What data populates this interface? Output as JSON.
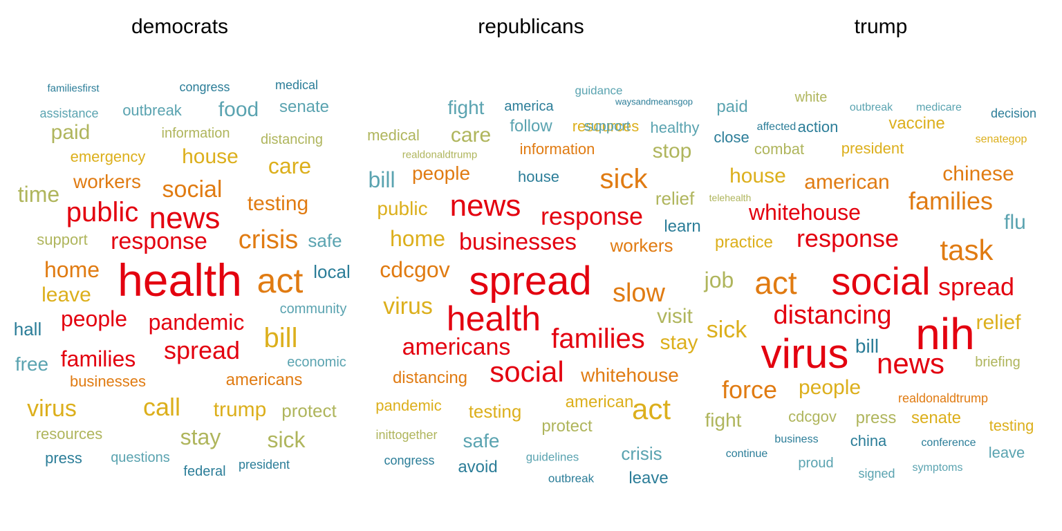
{
  "palette": {
    "red": "#e3000f",
    "orange": "#e07b12",
    "gold": "#dcaf1c",
    "olive": "#afb55c",
    "teal": "#5aa3b0",
    "blue": "#2b7d98"
  },
  "chart_data": [
    {
      "type": "wordcloud",
      "title": "democrats",
      "words": [
        {
          "text": "health",
          "size": 66,
          "color": "red"
        },
        {
          "text": "news",
          "size": 44,
          "color": "red"
        },
        {
          "text": "act",
          "size": 50,
          "color": "orange"
        },
        {
          "text": "public",
          "size": 40,
          "color": "red"
        },
        {
          "text": "crisis",
          "size": 38,
          "color": "orange"
        },
        {
          "text": "bill",
          "size": 40,
          "color": "gold"
        },
        {
          "text": "response",
          "size": 34,
          "color": "red"
        },
        {
          "text": "spread",
          "size": 36,
          "color": "red"
        },
        {
          "text": "social",
          "size": 34,
          "color": "orange"
        },
        {
          "text": "pandemic",
          "size": 32,
          "color": "red"
        },
        {
          "text": "people",
          "size": 32,
          "color": "red"
        },
        {
          "text": "families",
          "size": 32,
          "color": "red"
        },
        {
          "text": "care",
          "size": 32,
          "color": "gold"
        },
        {
          "text": "call",
          "size": 36,
          "color": "gold"
        },
        {
          "text": "home",
          "size": 32,
          "color": "orange"
        },
        {
          "text": "testing",
          "size": 30,
          "color": "orange"
        },
        {
          "text": "house",
          "size": 30,
          "color": "gold"
        },
        {
          "text": "time",
          "size": 32,
          "color": "olive"
        },
        {
          "text": "virus",
          "size": 34,
          "color": "gold"
        },
        {
          "text": "stay",
          "size": 32,
          "color": "olive"
        },
        {
          "text": "sick",
          "size": 32,
          "color": "olive"
        },
        {
          "text": "trump",
          "size": 30,
          "color": "gold"
        },
        {
          "text": "paid",
          "size": 30,
          "color": "olive"
        },
        {
          "text": "food",
          "size": 30,
          "color": "teal"
        },
        {
          "text": "workers",
          "size": 28,
          "color": "orange"
        },
        {
          "text": "leave",
          "size": 30,
          "color": "gold"
        },
        {
          "text": "protect",
          "size": 26,
          "color": "olive"
        },
        {
          "text": "free",
          "size": 28,
          "color": "teal"
        },
        {
          "text": "safe",
          "size": 26,
          "color": "teal"
        },
        {
          "text": "local",
          "size": 26,
          "color": "blue"
        },
        {
          "text": "hall",
          "size": 26,
          "color": "blue"
        },
        {
          "text": "senate",
          "size": 24,
          "color": "teal"
        },
        {
          "text": "outbreak",
          "size": 22,
          "color": "teal"
        },
        {
          "text": "americans",
          "size": 24,
          "color": "orange"
        },
        {
          "text": "businesses",
          "size": 22,
          "color": "orange"
        },
        {
          "text": "emergency",
          "size": 22,
          "color": "gold"
        },
        {
          "text": "information",
          "size": 20,
          "color": "olive"
        },
        {
          "text": "distancing",
          "size": 20,
          "color": "olive"
        },
        {
          "text": "support",
          "size": 22,
          "color": "olive"
        },
        {
          "text": "resources",
          "size": 22,
          "color": "olive"
        },
        {
          "text": "press",
          "size": 22,
          "color": "blue"
        },
        {
          "text": "questions",
          "size": 20,
          "color": "teal"
        },
        {
          "text": "federal",
          "size": 20,
          "color": "blue"
        },
        {
          "text": "president",
          "size": 18,
          "color": "blue"
        },
        {
          "text": "community",
          "size": 20,
          "color": "teal"
        },
        {
          "text": "economic",
          "size": 20,
          "color": "teal"
        },
        {
          "text": "assistance",
          "size": 18,
          "color": "teal"
        },
        {
          "text": "familiesfirst",
          "size": 15,
          "color": "blue"
        },
        {
          "text": "congress",
          "size": 18,
          "color": "blue"
        },
        {
          "text": "medical",
          "size": 18,
          "color": "blue"
        }
      ]
    },
    {
      "type": "wordcloud",
      "title": "republicans",
      "words": [
        {
          "text": "spread",
          "size": 58,
          "color": "red"
        },
        {
          "text": "health",
          "size": 50,
          "color": "red"
        },
        {
          "text": "news",
          "size": 44,
          "color": "red"
        },
        {
          "text": "families",
          "size": 40,
          "color": "red"
        },
        {
          "text": "social",
          "size": 42,
          "color": "red"
        },
        {
          "text": "act",
          "size": 42,
          "color": "gold"
        },
        {
          "text": "sick",
          "size": 40,
          "color": "orange"
        },
        {
          "text": "slow",
          "size": 38,
          "color": "orange"
        },
        {
          "text": "response",
          "size": 36,
          "color": "red"
        },
        {
          "text": "businesses",
          "size": 34,
          "color": "red"
        },
        {
          "text": "americans",
          "size": 34,
          "color": "red"
        },
        {
          "text": "cdcgov",
          "size": 32,
          "color": "orange"
        },
        {
          "text": "virus",
          "size": 34,
          "color": "gold"
        },
        {
          "text": "home",
          "size": 32,
          "color": "gold"
        },
        {
          "text": "bill",
          "size": 32,
          "color": "teal"
        },
        {
          "text": "care",
          "size": 30,
          "color": "olive"
        },
        {
          "text": "stop",
          "size": 30,
          "color": "olive"
        },
        {
          "text": "stay",
          "size": 30,
          "color": "gold"
        },
        {
          "text": "visit",
          "size": 30,
          "color": "olive"
        },
        {
          "text": "public",
          "size": 28,
          "color": "gold"
        },
        {
          "text": "people",
          "size": 28,
          "color": "orange"
        },
        {
          "text": "whitehouse",
          "size": 28,
          "color": "orange"
        },
        {
          "text": "workers",
          "size": 26,
          "color": "orange"
        },
        {
          "text": "relief",
          "size": 26,
          "color": "olive"
        },
        {
          "text": "fight",
          "size": 28,
          "color": "teal"
        },
        {
          "text": "safe",
          "size": 28,
          "color": "teal"
        },
        {
          "text": "crisis",
          "size": 26,
          "color": "teal"
        },
        {
          "text": "distancing",
          "size": 24,
          "color": "orange"
        },
        {
          "text": "testing",
          "size": 26,
          "color": "gold"
        },
        {
          "text": "american",
          "size": 24,
          "color": "gold"
        },
        {
          "text": "protect",
          "size": 24,
          "color": "olive"
        },
        {
          "text": "avoid",
          "size": 24,
          "color": "blue"
        },
        {
          "text": "leave",
          "size": 24,
          "color": "blue"
        },
        {
          "text": "learn",
          "size": 24,
          "color": "blue"
        },
        {
          "text": "follow",
          "size": 24,
          "color": "teal"
        },
        {
          "text": "house",
          "size": 22,
          "color": "blue"
        },
        {
          "text": "information",
          "size": 22,
          "color": "orange"
        },
        {
          "text": "resources",
          "size": 22,
          "color": "gold"
        },
        {
          "text": "healthy",
          "size": 22,
          "color": "teal"
        },
        {
          "text": "medical",
          "size": 22,
          "color": "olive"
        },
        {
          "text": "pandemic",
          "size": 22,
          "color": "gold"
        },
        {
          "text": "support",
          "size": 20,
          "color": "teal"
        },
        {
          "text": "america",
          "size": 20,
          "color": "blue"
        },
        {
          "text": "inittogether",
          "size": 18,
          "color": "olive"
        },
        {
          "text": "congress",
          "size": 18,
          "color": "blue"
        },
        {
          "text": "guidelines",
          "size": 17,
          "color": "teal"
        },
        {
          "text": "outbreak",
          "size": 17,
          "color": "blue"
        },
        {
          "text": "guidance",
          "size": 17,
          "color": "teal"
        },
        {
          "text": "realdonaldtrump",
          "size": 15,
          "color": "olive"
        },
        {
          "text": "waysandmeansgop",
          "size": 13,
          "color": "blue"
        }
      ]
    },
    {
      "type": "wordcloud",
      "title": "trump",
      "words": [
        {
          "text": "nih",
          "size": 64,
          "color": "red"
        },
        {
          "text": "virus",
          "size": 60,
          "color": "red"
        },
        {
          "text": "social",
          "size": 56,
          "color": "red"
        },
        {
          "text": "act",
          "size": 46,
          "color": "orange"
        },
        {
          "text": "task",
          "size": 42,
          "color": "orange"
        },
        {
          "text": "news",
          "size": 42,
          "color": "red"
        },
        {
          "text": "distancing",
          "size": 38,
          "color": "red"
        },
        {
          "text": "response",
          "size": 36,
          "color": "red"
        },
        {
          "text": "spread",
          "size": 36,
          "color": "red"
        },
        {
          "text": "families",
          "size": 36,
          "color": "orange"
        },
        {
          "text": "force",
          "size": 36,
          "color": "orange"
        },
        {
          "text": "whitehouse",
          "size": 32,
          "color": "red"
        },
        {
          "text": "american",
          "size": 30,
          "color": "orange"
        },
        {
          "text": "chinese",
          "size": 30,
          "color": "orange"
        },
        {
          "text": "sick",
          "size": 34,
          "color": "gold"
        },
        {
          "text": "relief",
          "size": 30,
          "color": "gold"
        },
        {
          "text": "people",
          "size": 30,
          "color": "gold"
        },
        {
          "text": "house",
          "size": 30,
          "color": "gold"
        },
        {
          "text": "job",
          "size": 32,
          "color": "olive"
        },
        {
          "text": "flu",
          "size": 30,
          "color": "teal"
        },
        {
          "text": "bill",
          "size": 28,
          "color": "blue"
        },
        {
          "text": "fight",
          "size": 28,
          "color": "olive"
        },
        {
          "text": "practice",
          "size": 24,
          "color": "gold"
        },
        {
          "text": "vaccine",
          "size": 24,
          "color": "gold"
        },
        {
          "text": "president",
          "size": 22,
          "color": "gold"
        },
        {
          "text": "combat",
          "size": 22,
          "color": "olive"
        },
        {
          "text": "paid",
          "size": 24,
          "color": "teal"
        },
        {
          "text": "close",
          "size": 22,
          "color": "blue"
        },
        {
          "text": "action",
          "size": 22,
          "color": "blue"
        },
        {
          "text": "press",
          "size": 24,
          "color": "olive"
        },
        {
          "text": "senate",
          "size": 24,
          "color": "gold"
        },
        {
          "text": "cdcgov",
          "size": 22,
          "color": "olive"
        },
        {
          "text": "china",
          "size": 22,
          "color": "blue"
        },
        {
          "text": "testing",
          "size": 22,
          "color": "gold"
        },
        {
          "text": "briefing",
          "size": 20,
          "color": "olive"
        },
        {
          "text": "leave",
          "size": 22,
          "color": "teal"
        },
        {
          "text": "proud",
          "size": 20,
          "color": "teal"
        },
        {
          "text": "signed",
          "size": 18,
          "color": "teal"
        },
        {
          "text": "realdonaldtrump",
          "size": 18,
          "color": "orange"
        },
        {
          "text": "white",
          "size": 20,
          "color": "olive"
        },
        {
          "text": "decision",
          "size": 18,
          "color": "blue"
        },
        {
          "text": "affected",
          "size": 16,
          "color": "blue"
        },
        {
          "text": "outbreak",
          "size": 16,
          "color": "teal"
        },
        {
          "text": "medicare",
          "size": 16,
          "color": "teal"
        },
        {
          "text": "senategop",
          "size": 16,
          "color": "gold"
        },
        {
          "text": "telehealth",
          "size": 14,
          "color": "olive"
        },
        {
          "text": "business",
          "size": 16,
          "color": "blue"
        },
        {
          "text": "continue",
          "size": 16,
          "color": "blue"
        },
        {
          "text": "conference",
          "size": 16,
          "color": "blue"
        },
        {
          "text": "symptoms",
          "size": 16,
          "color": "teal"
        }
      ]
    }
  ]
}
